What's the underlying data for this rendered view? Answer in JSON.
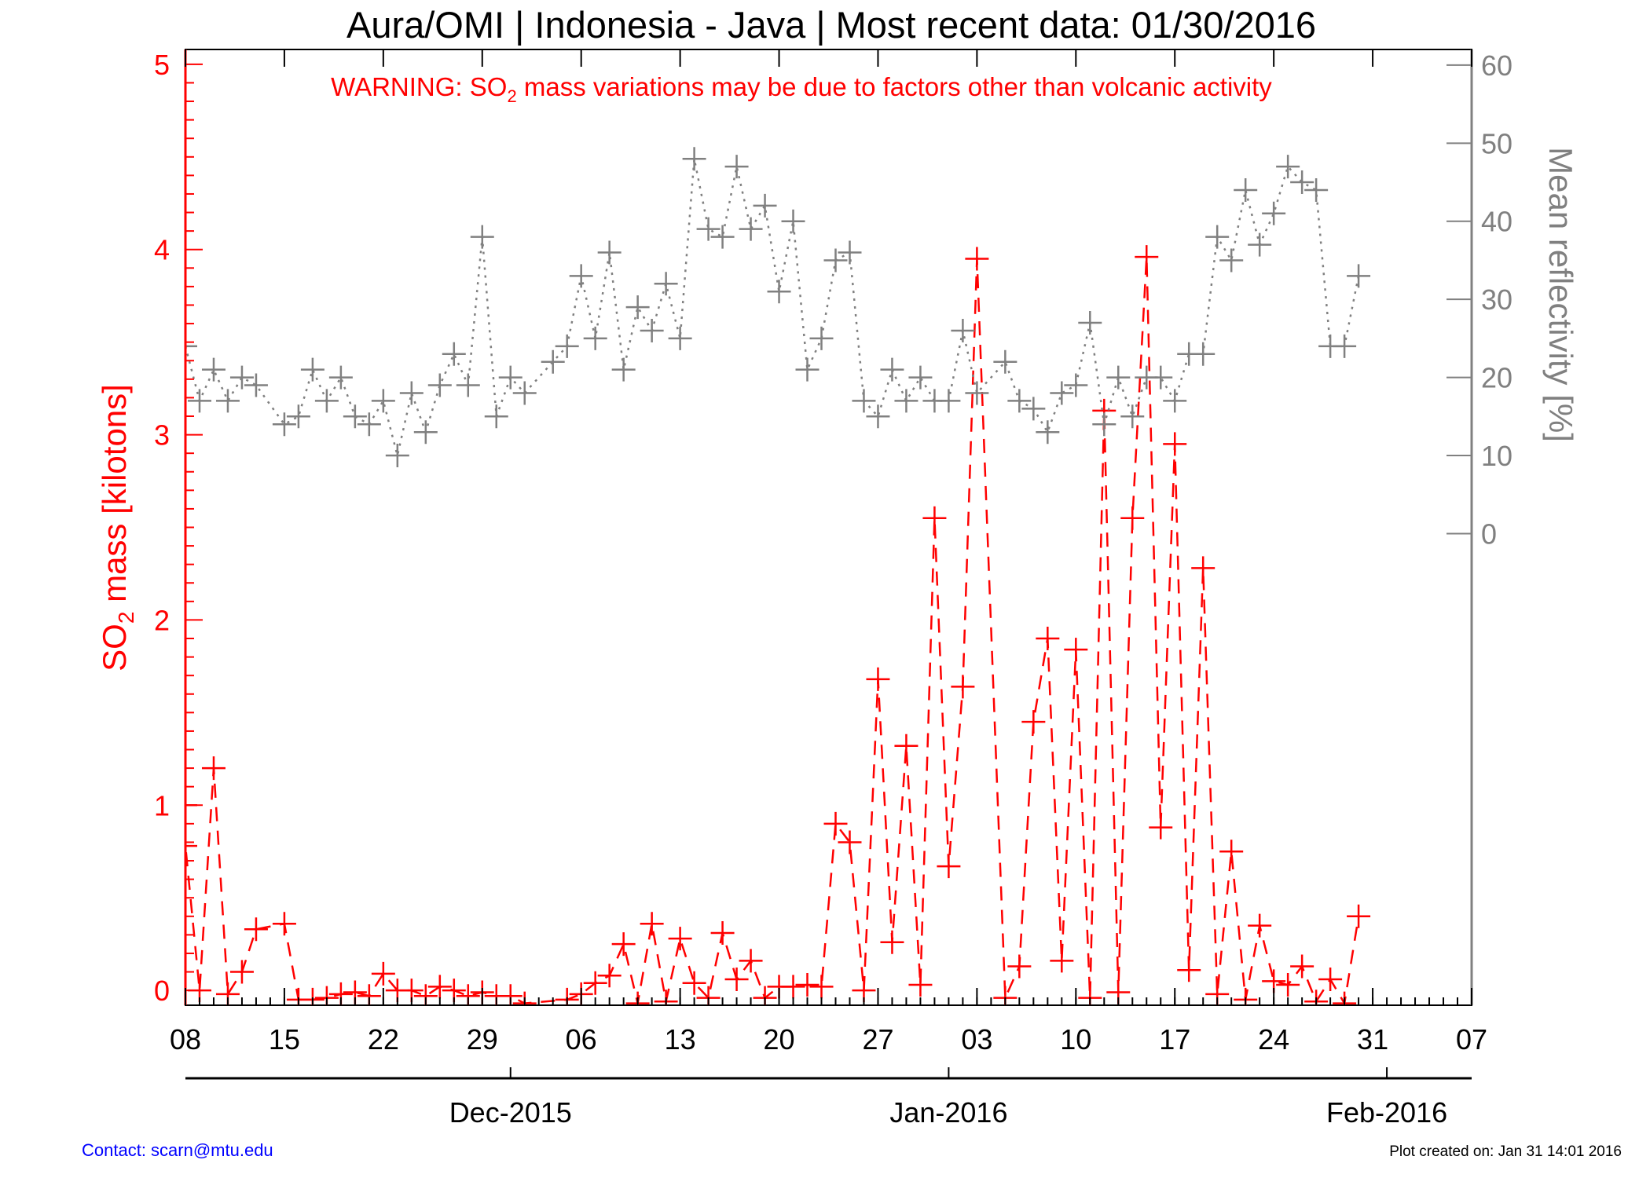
{
  "header": {
    "title": "Aura/OMI | Indonesia - Java | Most recent data: 01/30/2016",
    "warning_pre": "WARNING: SO",
    "warning_sub": "2",
    "warning_post": " mass variations may be due to factors other than volcanic activity"
  },
  "footer": {
    "contact": "Contact: scarn@mtu.edu",
    "created": "Plot created on: Jan 31 14:01 2016"
  },
  "colors": {
    "so2": "#ff0000",
    "reflectivity": "#808080",
    "axis": "#000000"
  },
  "chart_data": {
    "type": "line",
    "x_axis": {
      "start": "2015-11-08",
      "end": "2016-02-07",
      "tick_dates": [
        "2015-11-08",
        "2015-11-15",
        "2015-11-22",
        "2015-11-29",
        "2015-12-06",
        "2015-12-13",
        "2015-12-20",
        "2015-12-27",
        "2016-01-03",
        "2016-01-10",
        "2016-01-17",
        "2016-01-24",
        "2016-01-31",
        "2016-02-07"
      ],
      "tick_labels": [
        "08",
        "15",
        "22",
        "29",
        "06",
        "13",
        "20",
        "27",
        "03",
        "10",
        "17",
        "24",
        "31",
        "07"
      ],
      "months": [
        {
          "date": "2015-12-01",
          "label": "Dec-2015"
        },
        {
          "date": "2016-01-01",
          "label": "Jan-2016"
        },
        {
          "date": "2016-02-01",
          "label": "Feb-2016"
        }
      ]
    },
    "left_axis": {
      "label_pre": "SO",
      "label_sub": "2",
      "label_post": " mass [kilotons]",
      "ylim": [
        -0.08,
        5.08
      ],
      "ticks": [
        0,
        1,
        2,
        3,
        4,
        5
      ],
      "tick_labels": [
        "0",
        "1",
        "2",
        "3",
        "4",
        "5"
      ]
    },
    "right_axis": {
      "label": "Mean reflectivity [%]",
      "ylim": [
        -60.4,
        62
      ],
      "ticks": [
        0,
        10,
        20,
        30,
        40,
        50,
        60
      ],
      "tick_labels": [
        "0",
        "10",
        "20",
        "30",
        "40",
        "50",
        "60"
      ]
    },
    "series": [
      {
        "axis": "left",
        "style": "dashed",
        "x": [
          "2015-11-08",
          "2015-11-08",
          "2015-11-09",
          "2015-11-10",
          "2015-11-11",
          "2015-11-12",
          "2015-11-13",
          "2015-11-15",
          "2015-11-16",
          "2015-11-17",
          "2015-11-18",
          "2015-11-19",
          "2015-11-20",
          "2015-11-21",
          "2015-11-22",
          "2015-11-23",
          "2015-11-24",
          "2015-11-25",
          "2015-11-26",
          "2015-11-27",
          "2015-11-28",
          "2015-11-29",
          "2015-11-30",
          "2015-12-01",
          "2015-12-02",
          "2015-12-05",
          "2015-12-06",
          "2015-12-07",
          "2015-12-08",
          "2015-12-09",
          "2015-12-10",
          "2015-12-11",
          "2015-12-12",
          "2015-12-13",
          "2015-12-14",
          "2015-12-15",
          "2015-12-16",
          "2015-12-17",
          "2015-12-18",
          "2015-12-19",
          "2015-12-20",
          "2015-12-21",
          "2015-12-22",
          "2015-12-23",
          "2015-12-24",
          "2015-12-25",
          "2015-12-26",
          "2015-12-27",
          "2015-12-28",
          "2015-12-29",
          "2015-12-30",
          "2015-12-31",
          "2016-01-01",
          "2016-01-02",
          "2016-01-03",
          "2016-01-05",
          "2016-01-06",
          "2016-01-07",
          "2016-01-08",
          "2016-01-09",
          "2016-01-10",
          "2016-01-11",
          "2016-01-12",
          "2016-01-13",
          "2016-01-14",
          "2016-01-15",
          "2016-01-16",
          "2016-01-17",
          "2016-01-18",
          "2016-01-19",
          "2016-01-20",
          "2016-01-21",
          "2016-01-22",
          "2016-01-23",
          "2016-01-24",
          "2016-01-25",
          "2016-01-26",
          "2016-01-27",
          "2016-01-28",
          "2016-01-29",
          "2016-01-30"
        ],
        "values": [
          1.0,
          0.78,
          0.0,
          1.2,
          -0.02,
          0.1,
          0.33,
          0.36,
          -0.05,
          -0.05,
          -0.04,
          -0.02,
          -0.01,
          -0.03,
          0.09,
          0.0,
          0.0,
          -0.03,
          0.02,
          0.0,
          -0.03,
          -0.01,
          -0.03,
          -0.03,
          -0.07,
          -0.05,
          -0.02,
          0.04,
          0.08,
          0.25,
          -0.07,
          0.36,
          -0.06,
          0.28,
          0.04,
          -0.04,
          0.31,
          0.06,
          0.16,
          -0.04,
          0.02,
          0.02,
          0.03,
          0.02,
          0.9,
          0.8,
          0.0,
          1.68,
          0.26,
          1.32,
          0.03,
          2.55,
          0.67,
          1.64,
          3.95,
          -0.04,
          0.13,
          1.45,
          1.9,
          0.16,
          1.84,
          -0.04,
          3.13,
          -0.01,
          2.55,
          3.96,
          0.88,
          2.95,
          0.11,
          2.28,
          -0.02,
          0.75,
          -0.05,
          0.35,
          0.05,
          0.03,
          0.13,
          -0.06,
          0.06,
          -0.07,
          0.4
        ]
      },
      {
        "axis": "right",
        "style": "dotted",
        "x": [
          "2015-11-08",
          "2015-11-09",
          "2015-11-10",
          "2015-11-11",
          "2015-11-12",
          "2015-11-13",
          "2015-11-15",
          "2015-11-16",
          "2015-11-17",
          "2015-11-18",
          "2015-11-19",
          "2015-11-20",
          "2015-11-21",
          "2015-11-22",
          "2015-11-23",
          "2015-11-24",
          "2015-11-25",
          "2015-11-26",
          "2015-11-27",
          "2015-11-28",
          "2015-11-29",
          "2015-11-30",
          "2015-12-01",
          "2015-12-02",
          "2015-12-04",
          "2015-12-05",
          "2015-12-06",
          "2015-12-07",
          "2015-12-08",
          "2015-12-09",
          "2015-12-10",
          "2015-12-11",
          "2015-12-12",
          "2015-12-13",
          "2015-12-14",
          "2015-12-15",
          "2015-12-16",
          "2015-12-17",
          "2015-12-18",
          "2015-12-19",
          "2015-12-20",
          "2015-12-21",
          "2015-12-22",
          "2015-12-23",
          "2015-12-24",
          "2015-12-25",
          "2015-12-26",
          "2015-12-27",
          "2015-12-28",
          "2015-12-29",
          "2015-12-30",
          "2015-12-31",
          "2016-01-01",
          "2016-01-02",
          "2016-01-03",
          "2016-01-05",
          "2016-01-06",
          "2016-01-07",
          "2016-01-08",
          "2016-01-09",
          "2016-01-10",
          "2016-01-11",
          "2016-01-12",
          "2016-01-13",
          "2016-01-14",
          "2016-01-15",
          "2016-01-16",
          "2016-01-17",
          "2016-01-18",
          "2016-01-19",
          "2016-01-20",
          "2016-01-21",
          "2016-01-22",
          "2016-01-23",
          "2016-01-24",
          "2016-01-25",
          "2016-01-26",
          "2016-01-27",
          "2016-01-28",
          "2016-01-29",
          "2016-01-30"
        ],
        "values": [
          24,
          17,
          21,
          17,
          20,
          19,
          14,
          15,
          21,
          17,
          20,
          15,
          14,
          17,
          10,
          18,
          13,
          19,
          23,
          19,
          38,
          15,
          20,
          18,
          22,
          24,
          33,
          25,
          36,
          21,
          29,
          26,
          32,
          25,
          48,
          39,
          38,
          47,
          39,
          42,
          31,
          40,
          21,
          25,
          35,
          36,
          17,
          15,
          21,
          17,
          20,
          17,
          17,
          26,
          18,
          22,
          17,
          16,
          13,
          18,
          19,
          27,
          14,
          20,
          15,
          20,
          20,
          17,
          23,
          23,
          38,
          35,
          44,
          37,
          41,
          47,
          45,
          44,
          24,
          24,
          33
        ]
      }
    ]
  }
}
